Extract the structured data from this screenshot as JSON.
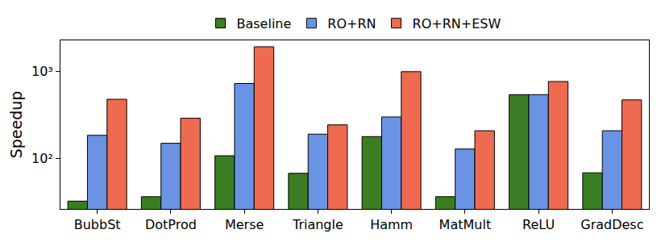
{
  "chart_data": {
    "type": "bar",
    "y_label": "Speedup",
    "categories": [
      "BubbSt",
      "DotProd",
      "Merse",
      "Triangle",
      "Hamm",
      "MatMult",
      "ReLU",
      "GradDesc"
    ],
    "series": [
      {
        "name": "Baseline",
        "color": "#3a7d22",
        "values": [
          32,
          36,
          107,
          67,
          178,
          36,
          543,
          68
        ]
      },
      {
        "name": "RO+RN",
        "color": "#6a93e3",
        "values": [
          184,
          149,
          730,
          190,
          300,
          128,
          543,
          208
        ]
      },
      {
        "name": "RO+RN+ESW",
        "color": "#ee6a50",
        "values": [
          480,
          290,
          1940,
          243,
          1000,
          208,
          770,
          472
        ]
      }
    ],
    "log": "y",
    "ylim": [
      26,
      2300
    ],
    "yticks": [
      {
        "value": 100,
        "label": "10²"
      },
      {
        "value": 1000,
        "label": "10³"
      }
    ],
    "grid": false,
    "legend": "top"
  }
}
